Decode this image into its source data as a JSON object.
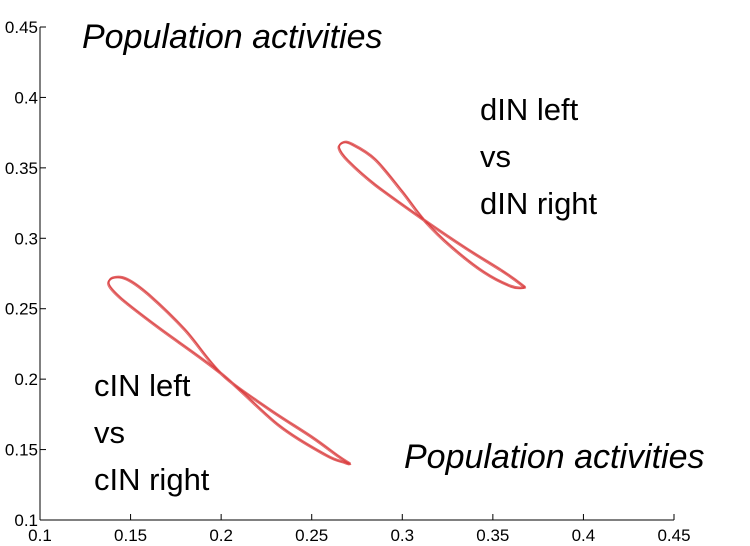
{
  "chart_data": {
    "type": "line",
    "xlim": [
      0.1,
      0.45
    ],
    "ylim": [
      0.1,
      0.45
    ],
    "x_ticks": [
      "0.1",
      "0.15",
      "0.2",
      "0.25",
      "0.3",
      "0.35",
      "0.4",
      "0.45"
    ],
    "y_ticks": [
      "0.1",
      "0.15",
      "0.2",
      "0.25",
      "0.3",
      "0.35",
      "0.4",
      "0.45"
    ],
    "grid": false,
    "axis_labels": {
      "x": "Population activities",
      "y": "Population activities"
    },
    "line_color": "#d9393b",
    "series": [
      {
        "label_lines": [
          "dIN left",
          "vs",
          "dIN right"
        ],
        "crossing": [
          0.312,
          0.313
        ],
        "points": [
          [
            0.312,
            0.313
          ],
          [
            0.285,
            0.338
          ],
          [
            0.27,
            0.355
          ],
          [
            0.265,
            0.364
          ],
          [
            0.267,
            0.368
          ],
          [
            0.272,
            0.367
          ],
          [
            0.285,
            0.356
          ],
          [
            0.3,
            0.333
          ],
          [
            0.312,
            0.313
          ],
          [
            0.327,
            0.294
          ],
          [
            0.345,
            0.276
          ],
          [
            0.36,
            0.266
          ],
          [
            0.367,
            0.265
          ],
          [
            0.366,
            0.267
          ],
          [
            0.355,
            0.277
          ],
          [
            0.335,
            0.293
          ],
          [
            0.312,
            0.313
          ]
        ]
      },
      {
        "label_lines": [
          "cIN left",
          "vs",
          "cIN right"
        ],
        "crossing": [
          0.2,
          0.204
        ],
        "points": [
          [
            0.2,
            0.204
          ],
          [
            0.165,
            0.237
          ],
          [
            0.145,
            0.257
          ],
          [
            0.138,
            0.267
          ],
          [
            0.14,
            0.272
          ],
          [
            0.148,
            0.271
          ],
          [
            0.16,
            0.26
          ],
          [
            0.18,
            0.235
          ],
          [
            0.2,
            0.204
          ],
          [
            0.225,
            0.18
          ],
          [
            0.25,
            0.159
          ],
          [
            0.265,
            0.145
          ],
          [
            0.271,
            0.14
          ],
          [
            0.268,
            0.141
          ],
          [
            0.258,
            0.146
          ],
          [
            0.232,
            0.167
          ],
          [
            0.2,
            0.204
          ]
        ]
      }
    ]
  }
}
